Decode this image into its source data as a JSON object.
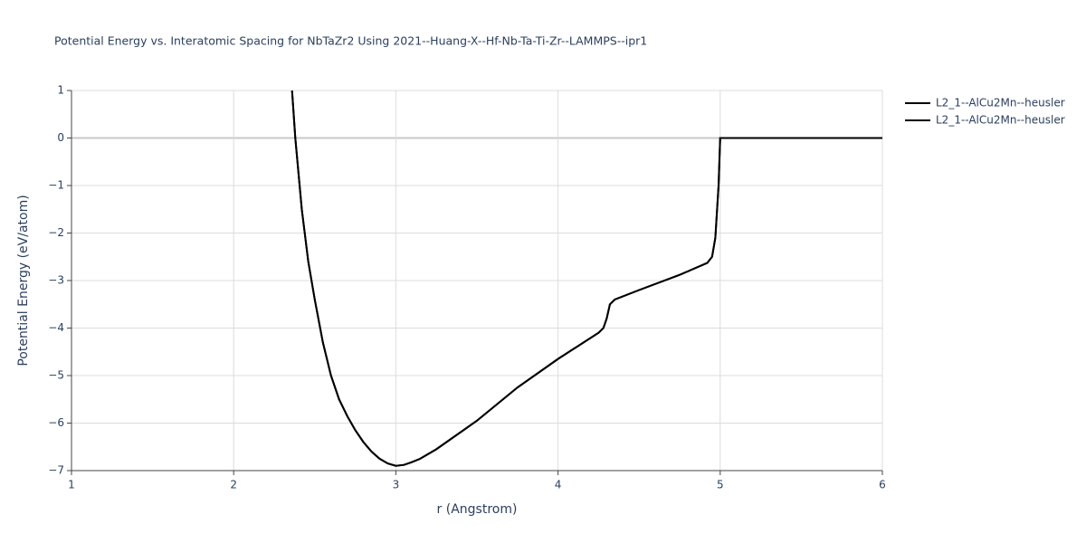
{
  "chart_data": {
    "type": "line",
    "title": "Potential Energy vs. Interatomic Spacing for NbTaZr2 Using 2021--Huang-X--Hf-Nb-Ta-Ti-Zr--LAMMPS--ipr1",
    "x_label": "r (Angstrom)",
    "y_label": "Potential Energy (eV/atom)",
    "x": [
      2.36,
      2.38,
      2.42,
      2.46,
      2.5,
      2.55,
      2.6,
      2.65,
      2.7,
      2.75,
      2.8,
      2.85,
      2.9,
      2.95,
      3.0,
      3.05,
      3.1,
      3.15,
      3.25,
      3.5,
      3.75,
      4.0,
      4.25,
      4.28,
      4.3,
      4.32,
      4.35,
      4.5,
      4.75,
      4.92,
      4.95,
      4.97,
      4.99,
      5.0,
      6.0
    ],
    "series": [
      {
        "name": "L2_1--AlCu2Mn--heusler",
        "color": "#000000",
        "values": [
          1.0,
          0.0,
          -1.5,
          -2.6,
          -3.4,
          -4.3,
          -5.0,
          -5.5,
          -5.85,
          -6.15,
          -6.4,
          -6.6,
          -6.75,
          -6.85,
          -6.9,
          -6.88,
          -6.82,
          -6.75,
          -6.55,
          -5.95,
          -5.25,
          -4.65,
          -4.1,
          -4.0,
          -3.8,
          -3.5,
          -3.4,
          -3.2,
          -2.88,
          -2.63,
          -2.5,
          -2.1,
          -1.0,
          0.0,
          0.0
        ]
      },
      {
        "name": "L2_1--AlCu2Mn--heusler",
        "color": "#000000",
        "values": [
          1.0,
          0.0,
          -1.5,
          -2.6,
          -3.4,
          -4.3,
          -5.0,
          -5.5,
          -5.85,
          -6.15,
          -6.4,
          -6.6,
          -6.75,
          -6.85,
          -6.9,
          -6.88,
          -6.82,
          -6.75,
          -6.55,
          -5.95,
          -5.25,
          -4.65,
          -4.1,
          -4.0,
          -3.8,
          -3.5,
          -3.4,
          -3.2,
          -2.88,
          -2.63,
          -2.5,
          -2.1,
          -1.0,
          0.0,
          0.0
        ]
      }
    ],
    "xlim": [
      1,
      6
    ],
    "ylim": [
      -7,
      1
    ],
    "xticks": [
      1,
      2,
      3,
      4,
      5,
      6
    ],
    "yticks": [
      1,
      0,
      {
        "value": -1,
        "label": "−1"
      },
      {
        "value": -2,
        "label": "−2"
      },
      {
        "value": -3,
        "label": "−3"
      },
      {
        "value": -4,
        "label": "−4"
      },
      {
        "value": -5,
        "label": "−5"
      },
      {
        "value": -6,
        "label": "−6"
      },
      {
        "value": -7,
        "label": "−7"
      }
    ],
    "grid": true
  }
}
